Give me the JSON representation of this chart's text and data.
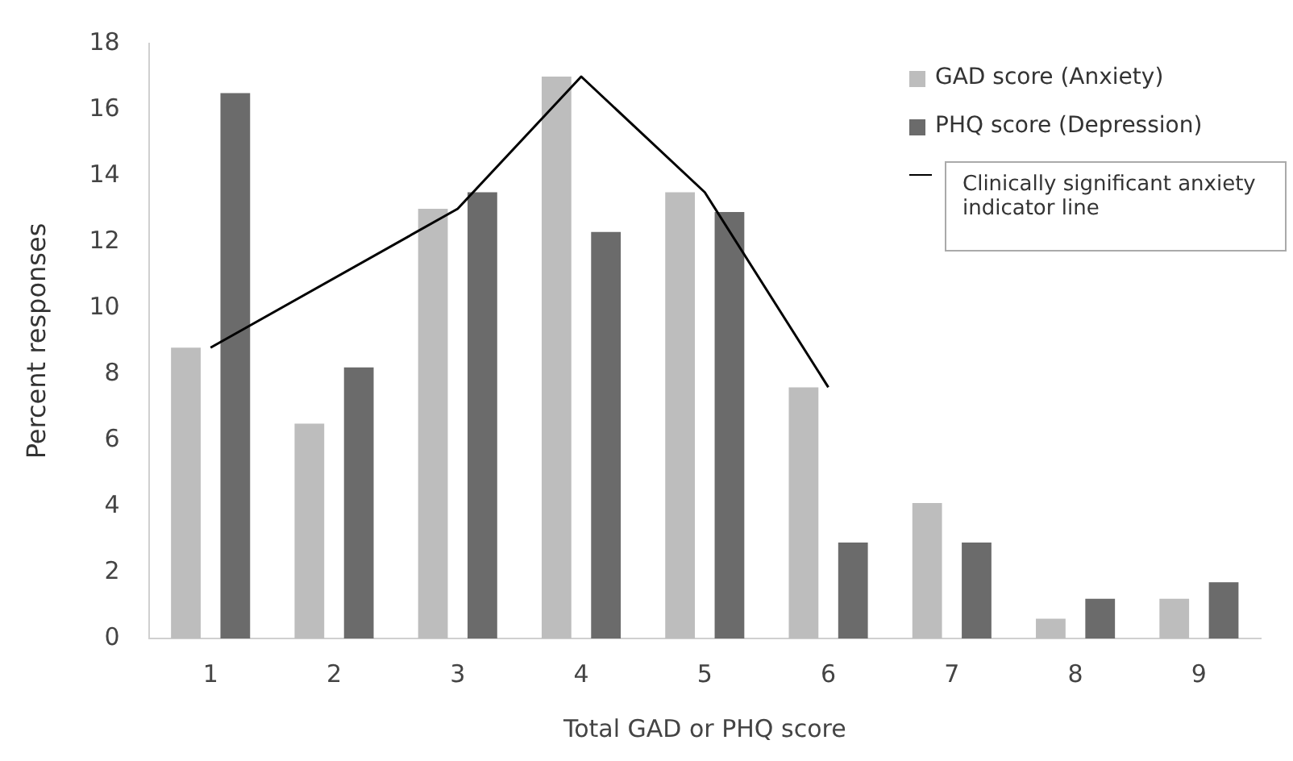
{
  "chart_data": {
    "type": "bar",
    "xlabel": "Total GAD or PHQ score",
    "ylabel": "Percent responses",
    "categories": [
      "1",
      "2",
      "3",
      "4",
      "5",
      "6",
      "7",
      "8",
      "9"
    ],
    "series": [
      {
        "name": "GAD score (Anxiety)",
        "color": "#bdbdbd",
        "values": [
          8.8,
          6.5,
          13.0,
          17.0,
          13.5,
          7.6,
          4.1,
          0.6,
          1.2
        ]
      },
      {
        "name": "PHQ score (Depression)",
        "color": "#6b6b6b",
        "values": [
          16.5,
          8.2,
          13.5,
          12.3,
          12.9,
          2.9,
          2.9,
          1.2,
          1.7
        ]
      },
      {
        "name": "Clinically significant anxiety indicator line",
        "type": "line",
        "color": "#000000",
        "values": [
          8.8,
          null,
          13.0,
          17.0,
          13.5,
          7.6,
          null,
          null,
          null
        ]
      }
    ],
    "ylim": [
      0,
      18
    ],
    "yticks": [
      0,
      2,
      4,
      6,
      8,
      10,
      12,
      14,
      16,
      18
    ],
    "grid": false,
    "legend": "top right",
    "marker": "none"
  }
}
